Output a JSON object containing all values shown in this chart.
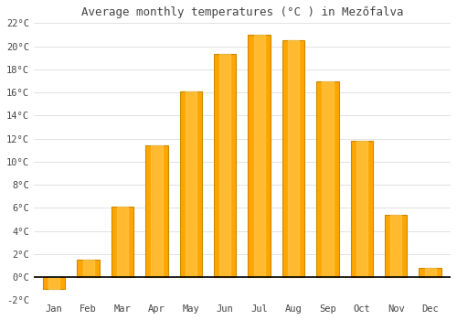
{
  "title": "Average monthly temperatures (°C ) in Mezőfalva",
  "months": [
    "Jan",
    "Feb",
    "Mar",
    "Apr",
    "May",
    "Jun",
    "Jul",
    "Aug",
    "Sep",
    "Oct",
    "Nov",
    "Dec"
  ],
  "values": [
    -1.0,
    1.5,
    6.1,
    11.4,
    16.1,
    19.3,
    21.0,
    20.5,
    17.0,
    11.8,
    5.4,
    0.8
  ],
  "bar_color": "#FFA500",
  "bar_edge_color": "#CC8800",
  "ylim": [
    -2,
    22
  ],
  "yticks": [
    -2,
    0,
    2,
    4,
    6,
    8,
    10,
    12,
    14,
    16,
    18,
    20,
    22
  ],
  "ytick_labels": [
    "-2°C",
    "0°C",
    "2°C",
    "4°C",
    "6°C",
    "8°C",
    "10°C",
    "12°C",
    "14°C",
    "16°C",
    "18°C",
    "20°C",
    "22°C"
  ],
  "background_color": "#ffffff",
  "plot_bg_color": "#ffffff",
  "grid_color": "#dddddd",
  "font_color": "#444444",
  "title_fontsize": 9,
  "tick_fontsize": 7.5,
  "bar_width": 0.65
}
